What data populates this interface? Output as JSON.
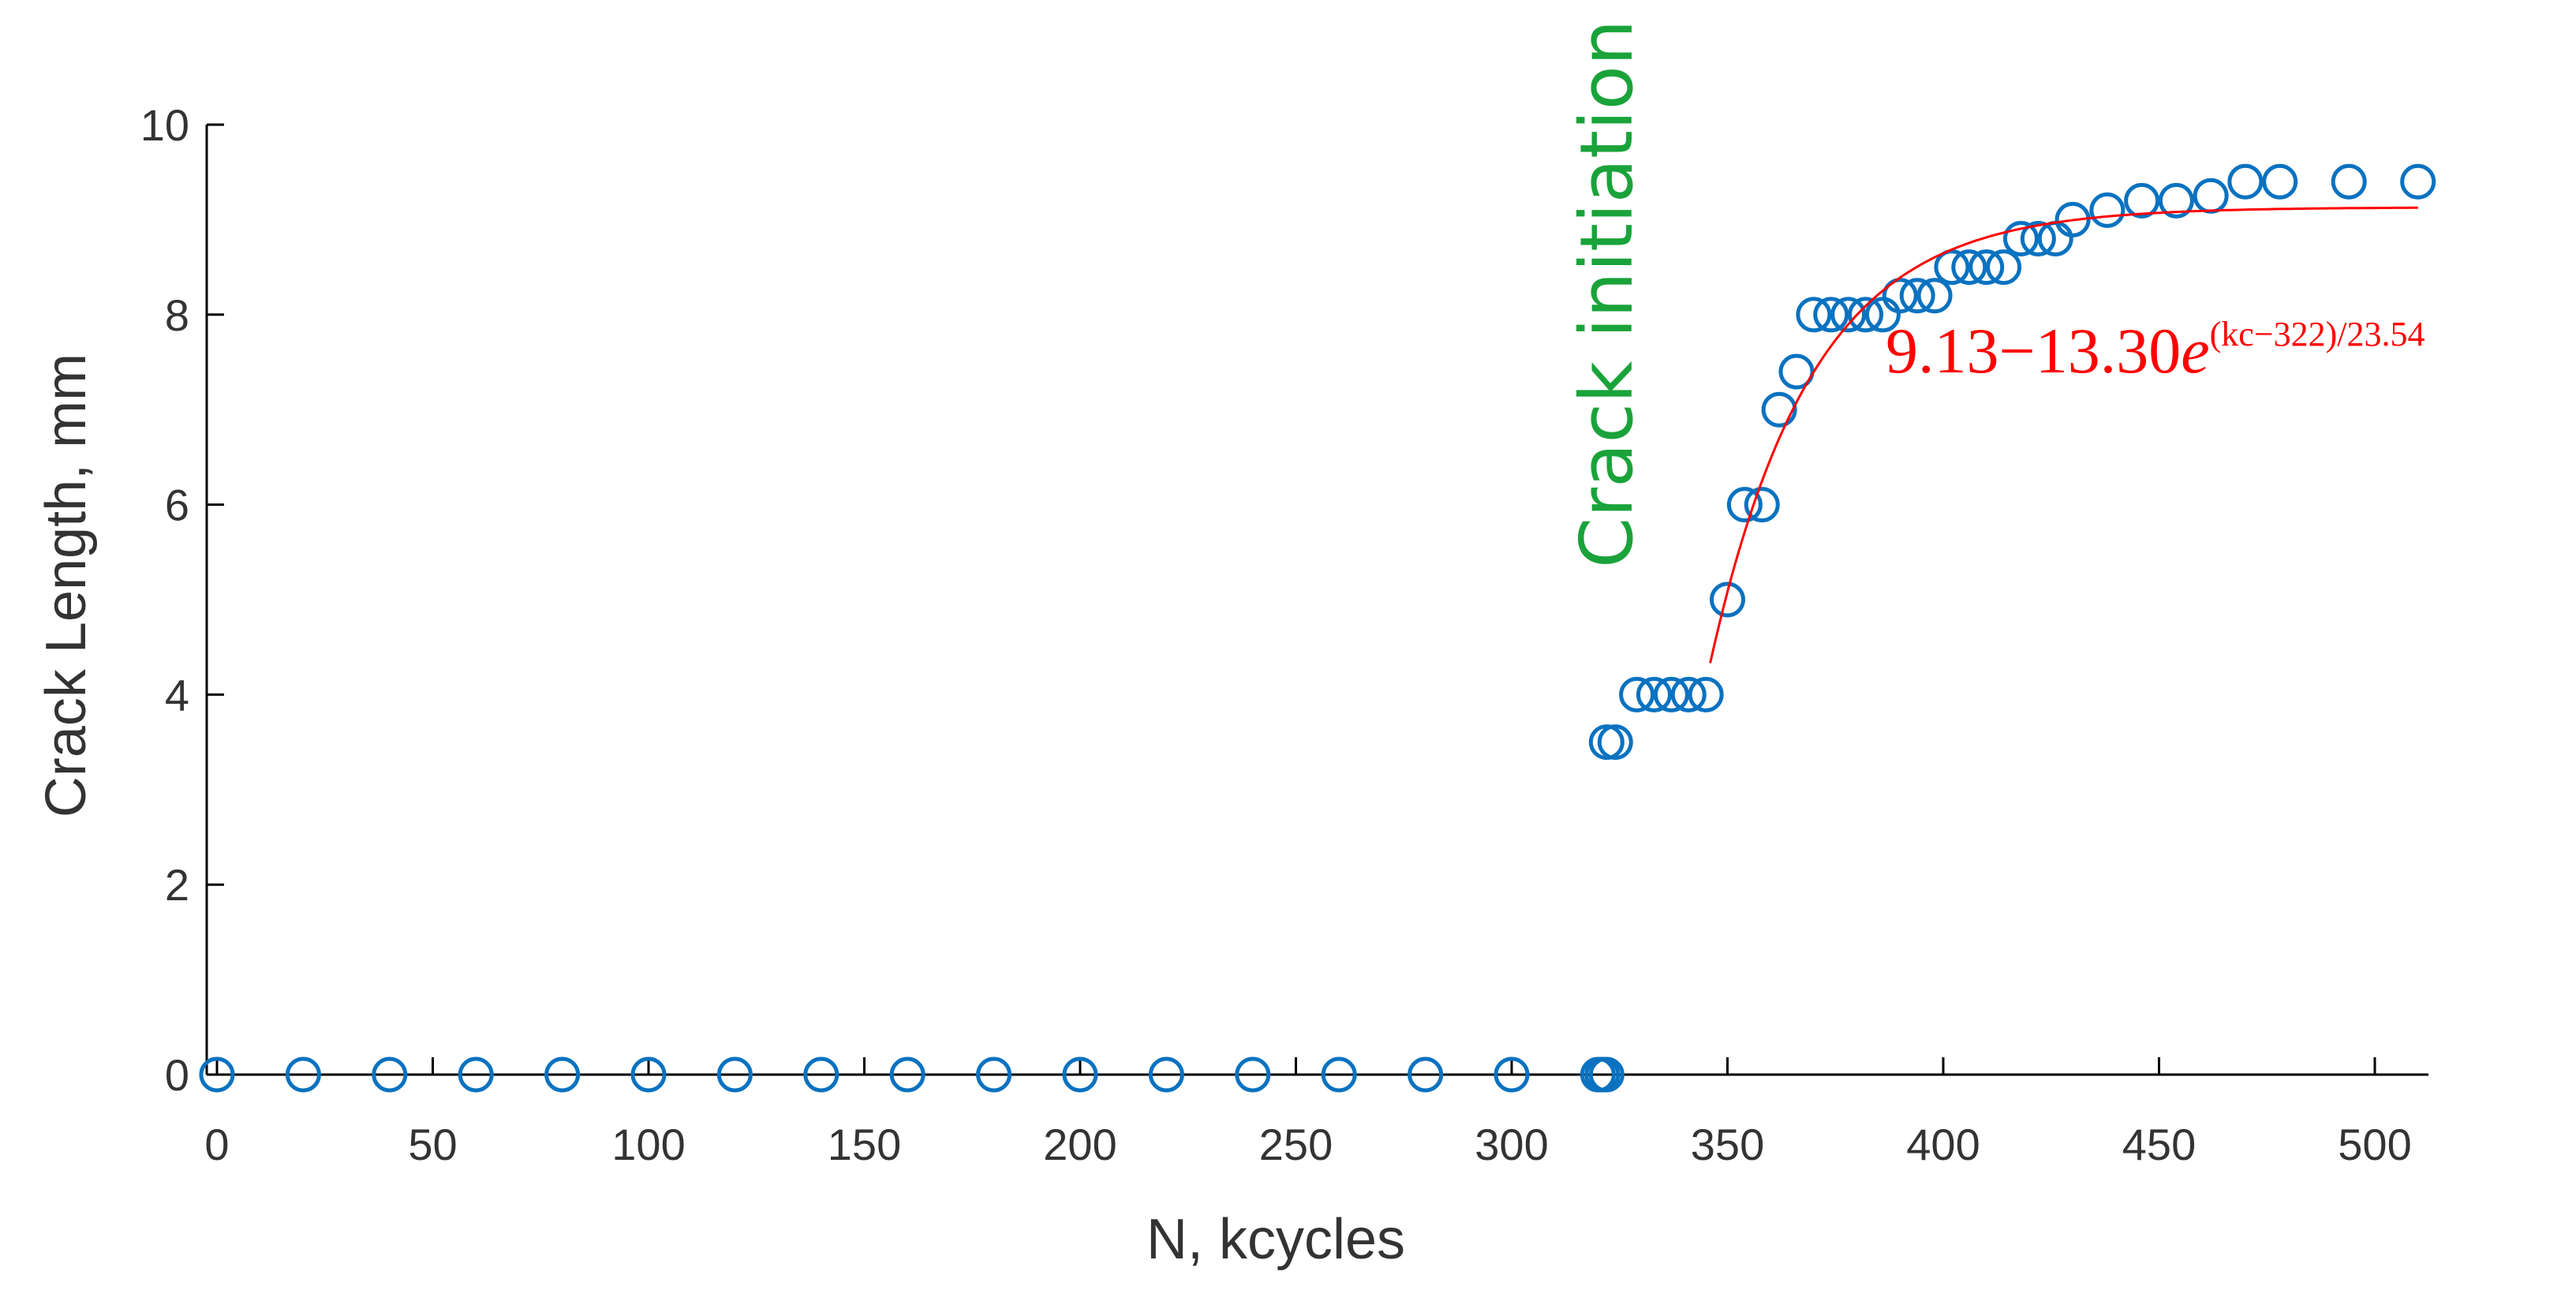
{
  "chart_data": {
    "type": "scatter",
    "xlabel": "N, kcycles",
    "ylabel": "Crack Length, mm",
    "xlim": [
      -5,
      525
    ],
    "ylim": [
      0,
      10
    ],
    "x_ticks": [
      0,
      50,
      100,
      150,
      200,
      250,
      300,
      350,
      400,
      450,
      500
    ],
    "y_ticks": [
      0,
      2,
      4,
      6,
      8,
      10
    ],
    "grid": false,
    "marker_color": "#0a72c0",
    "fit_color": "#ff0000",
    "annotation_color": "#1aa33a",
    "annotation": "Crack initiation",
    "annotation_x": 322,
    "fit_label": {
      "base": "9.13−13.30",
      "e": "e",
      "exponent": "(kc−322)/23.54"
    },
    "series": [
      {
        "type": "scatter",
        "points": [
          [
            0,
            0
          ],
          [
            20,
            0
          ],
          [
            40,
            0
          ],
          [
            60,
            0
          ],
          [
            80,
            0
          ],
          [
            100,
            0
          ],
          [
            120,
            0
          ],
          [
            140,
            0
          ],
          [
            160,
            0
          ],
          [
            180,
            0
          ],
          [
            200,
            0
          ],
          [
            220,
            0
          ],
          [
            240,
            0
          ],
          [
            260,
            0
          ],
          [
            280,
            0
          ],
          [
            300,
            0
          ],
          [
            320,
            0
          ],
          [
            321,
            0
          ],
          [
            322,
            0
          ],
          [
            322,
            3.5
          ],
          [
            324,
            3.5
          ],
          [
            329,
            4
          ],
          [
            333,
            4
          ],
          [
            337,
            4
          ],
          [
            341,
            4
          ],
          [
            345,
            4
          ],
          [
            350,
            5
          ],
          [
            354,
            6
          ],
          [
            358,
            6
          ],
          [
            362,
            7
          ],
          [
            366,
            7.4
          ],
          [
            370,
            8
          ],
          [
            374,
            8
          ],
          [
            378,
            8
          ],
          [
            382,
            8
          ],
          [
            386,
            8
          ],
          [
            390,
            8.2
          ],
          [
            394,
            8.2
          ],
          [
            398,
            8.2
          ],
          [
            402,
            8.5
          ],
          [
            406,
            8.5
          ],
          [
            410,
            8.5
          ],
          [
            414,
            8.5
          ],
          [
            418,
            8.8
          ],
          [
            422,
            8.8
          ],
          [
            426,
            8.8
          ],
          [
            430,
            9
          ],
          [
            438,
            9.1
          ],
          [
            446,
            9.2
          ],
          [
            454,
            9.2
          ],
          [
            462,
            9.25
          ],
          [
            470,
            9.4
          ],
          [
            478,
            9.4
          ],
          [
            494,
            9.4
          ],
          [
            510,
            9.4
          ]
        ]
      },
      {
        "type": "line",
        "x_start": 346,
        "x_end": 510,
        "a": 9.13,
        "b": 13.3,
        "x0": 322,
        "tau": 23.54
      }
    ]
  }
}
